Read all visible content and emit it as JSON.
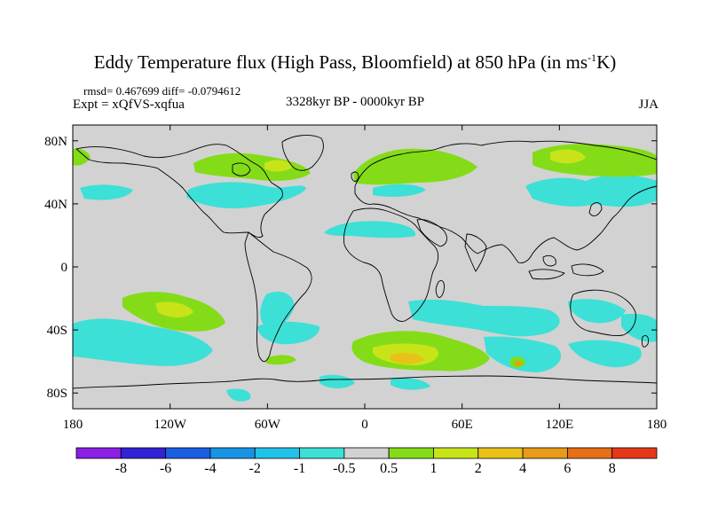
{
  "title": {
    "main": "Eddy Temperature flux (High Pass, Bloomfield) at 850 hPa (in ms",
    "sup": "-1",
    "suffix": "K)"
  },
  "stats": "rmsd= 0.467699 diff= -0.0794612",
  "expt": "Expt = xQfVS-xqfua",
  "period": "3328kyr BP - 0000kyr BP",
  "season": "JJA",
  "axes": {
    "lon_labels": [
      "180",
      "120W",
      "60W",
      "0",
      "60E",
      "120E",
      "180"
    ],
    "lat_labels": [
      "80N",
      "40N",
      "0",
      "40S",
      "80S"
    ]
  },
  "colorbar": {
    "levels": [
      "-8",
      "-6",
      "-4",
      "-2",
      "-1",
      "-0.5",
      "0.5",
      "1",
      "2",
      "4",
      "6",
      "8"
    ],
    "colors": [
      "#8a1fe6",
      "#3322d6",
      "#1a5ee3",
      "#1894e6",
      "#20c2e8",
      "#3de0d6",
      "#d2d2d2",
      "#84dc18",
      "#c8e418",
      "#e8c218",
      "#e89a18",
      "#e86e18",
      "#e53818"
    ]
  }
}
